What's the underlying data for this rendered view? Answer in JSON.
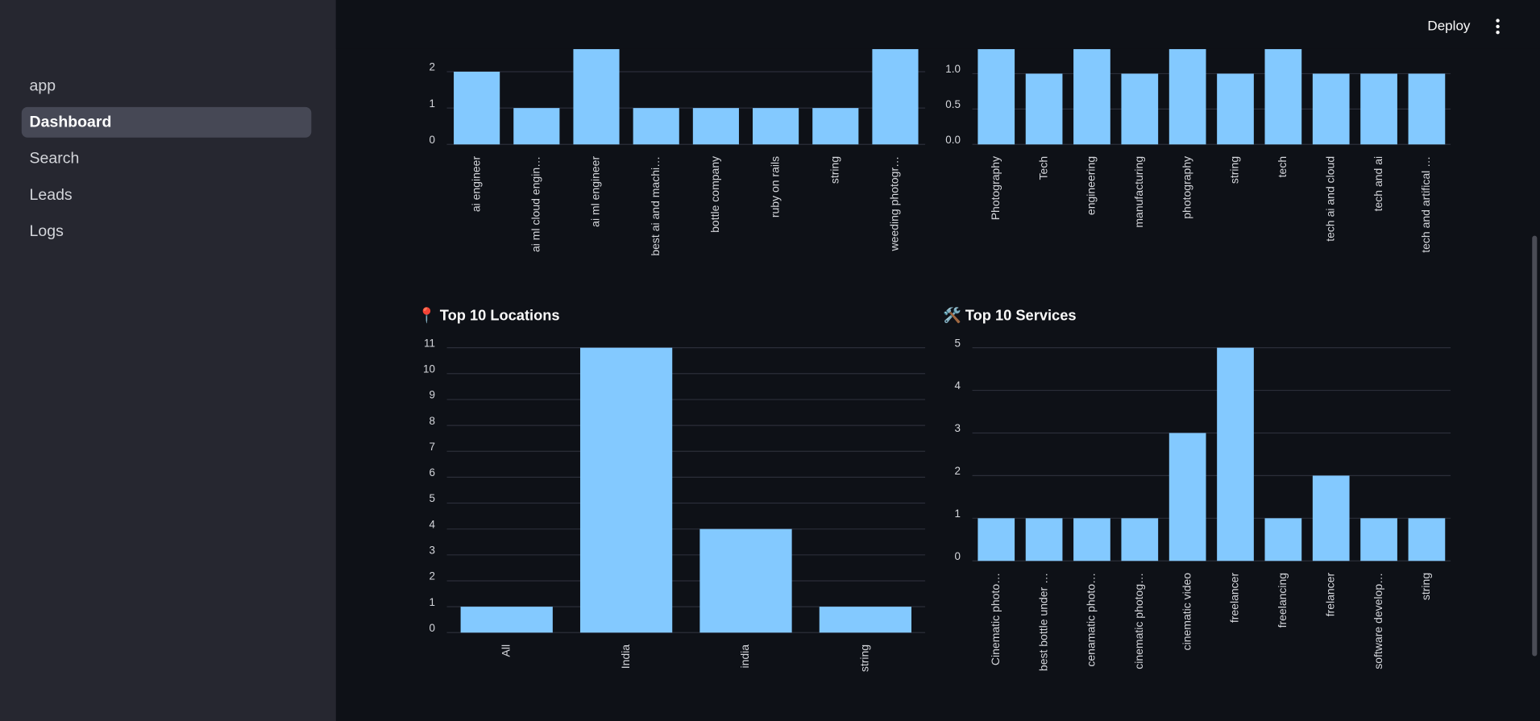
{
  "sidebar": {
    "nav": [
      "app",
      "Dashboard",
      "Search",
      "Leads",
      "Logs"
    ]
  },
  "header": {
    "deploy": "Deploy"
  },
  "chart_data": [
    {
      "type": "bar",
      "color": "#83c9ff",
      "categories": [
        "ai engineer",
        "ai ml cloud engin…",
        "ai ml engineer",
        "best ai and machi…",
        "bottle company",
        "ruby on rails",
        "string",
        "weeding photogr…"
      ],
      "values": [
        2,
        1,
        3,
        1,
        1,
        1,
        1,
        3
      ],
      "ylim": [
        0,
        3
      ],
      "yticks": [
        0,
        1,
        2
      ],
      "grid": true
    },
    {
      "type": "bar",
      "color": "#83c9ff",
      "categories": [
        "Photography",
        "Tech",
        "engineering",
        "manufacturing",
        "photography",
        "string",
        "tech",
        "tech ai and cloud",
        "tech and ai",
        "tech and artifical …"
      ],
      "values": [
        2,
        1,
        2,
        1,
        2,
        1,
        2,
        1,
        1,
        1
      ],
      "ylim": [
        0,
        2
      ],
      "yticks": [
        {
          "value": 0,
          "label": "0.0"
        },
        {
          "value": 0.5,
          "label": "0.5"
        },
        {
          "value": 1,
          "label": "1.0"
        }
      ],
      "grid": true
    },
    {
      "type": "bar",
      "title": "📍 Top 10 Locations",
      "color": "#83c9ff",
      "categories": [
        "All",
        "India",
        "india",
        "string"
      ],
      "values": [
        1,
        11,
        4,
        1
      ],
      "ylim": [
        0,
        11
      ],
      "yticks": [
        0,
        1,
        2,
        3,
        4,
        5,
        6,
        7,
        8,
        9,
        10,
        11
      ],
      "grid": true
    },
    {
      "type": "bar",
      "title": "🛠️ Top 10 Services",
      "color": "#83c9ff",
      "categories": [
        "Cinematic photo…",
        "best bottle under …",
        "cenamatic photo…",
        "cinematic photog…",
        "cinematic video",
        "freelancer",
        "freelancing",
        "frelancer",
        "software develop…",
        "string"
      ],
      "values": [
        1,
        1,
        1,
        1,
        3,
        5,
        1,
        2,
        1,
        1
      ],
      "ylim": [
        0,
        5
      ],
      "yticks": [
        0,
        1,
        2,
        3,
        4,
        5
      ],
      "grid": true
    }
  ]
}
